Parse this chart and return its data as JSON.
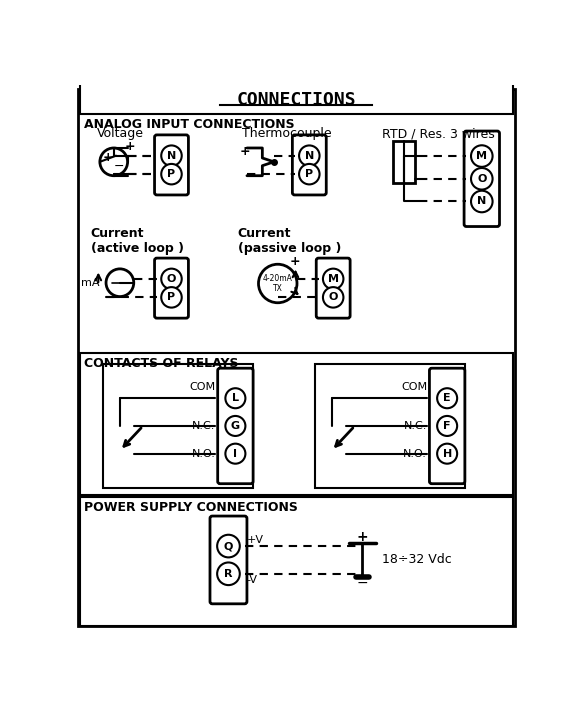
{
  "title": "CONNECTIONS",
  "bg_color": "#ffffff",
  "border_color": "#000000",
  "section1_label": "ANALOG INPUT CONNECTIONS",
  "section2_label": "CONTACTS OF RELAYS",
  "section3_label": "POWER SUPPLY CONNECTIONS",
  "voltage_label": "Voltage",
  "thermocouple_label": "Thermocouple",
  "rtd_label": "RTD / Res. 3 wires",
  "current_active_label": "Current\n(active loop )",
  "current_passive_label": "Current\n(passive loop )",
  "power_label": "18÷32 Vdc"
}
